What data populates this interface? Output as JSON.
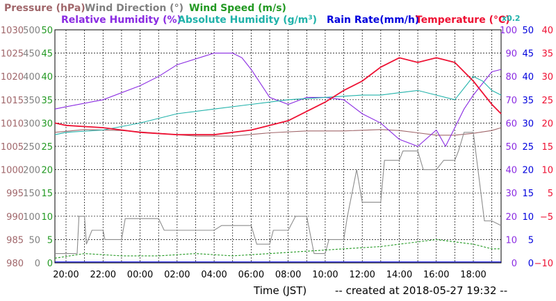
{
  "chart_data": {
    "type": "line",
    "xlabel": "Time (JST)",
    "footer": "-- created at 2018-05-27 19:32 --",
    "x_ticks": [
      "20:00",
      "22:00",
      "00:00",
      "02:00",
      "04:00",
      "06:00",
      "08:00",
      "10:00",
      "12:00",
      "14:00",
      "16:00",
      "18:00"
    ],
    "x_range_hours": [
      -0.6,
      23.5
    ],
    "grid": true,
    "axes": {
      "pressure": {
        "ticks": [
          "1030",
          "1025",
          "1020",
          "1015",
          "1010",
          "1005",
          "1000",
          "995",
          "990",
          "985",
          "980"
        ],
        "ylim": [
          980,
          1030
        ],
        "color": "#a0666a"
      },
      "wind_direction": {
        "ticks": [
          "500",
          "450",
          "400",
          "350",
          "300",
          "250",
          "200",
          "150",
          "100",
          "50",
          "0"
        ],
        "ylim": [
          0,
          500
        ],
        "color": "#808080"
      },
      "wind_speed": {
        "ticks": [
          "50",
          "45",
          "40",
          "35",
          "30",
          "25",
          "20",
          "15",
          "10",
          "5",
          "0"
        ],
        "ylim": [
          0,
          50
        ],
        "color": "#229922"
      },
      "humidity": {
        "ticks": [
          "100",
          "90",
          "80",
          "70",
          "60",
          "50",
          "40",
          "30",
          "20",
          "10",
          "0"
        ],
        "ylim": [
          0,
          100
        ],
        "color": "#8a2be2"
      },
      "rain_rate": {
        "ticks": [
          "50",
          "45",
          "40",
          "35",
          "30",
          "25",
          "20",
          "15",
          "10",
          "5",
          "0"
        ],
        "ylim": [
          0,
          50
        ],
        "color": "#0000dd"
      },
      "temperature": {
        "ticks": [
          "40",
          "35",
          "30",
          "25",
          "20",
          "15",
          "10",
          "5",
          "−5",
          "−10"
        ],
        "ylim": [
          -10,
          40
        ],
        "color": "#ee1133"
      }
    },
    "legend": {
      "pressure": "Pressure (hPa)",
      "wind_direction": "Wind Direction (°)",
      "wind_speed": "Wind Speed (m/s)",
      "relative_humidity": "Relative Humidity (%)",
      "absolute_humidity_prefix": "Absolute Humidity (g/m",
      "absolute_humidity_exp": "3",
      "absolute_humidity_suffix": ")",
      "rain_rate": "Rain Rate(mm/h)",
      "temperature": "Temperature (°C)",
      "scale_note": "x0.2"
    },
    "series": [
      {
        "name": "Pressure (hPa)",
        "axis": "pressure",
        "color": "#a0666a",
        "x": [
          -0.6,
          1,
          3,
          5,
          7,
          9,
          11,
          13,
          15,
          17,
          18,
          19,
          20,
          21,
          22,
          23,
          23.5
        ],
        "values": [
          1008,
          1008.6,
          1008.4,
          1007.8,
          1007.2,
          1007.2,
          1007.9,
          1008.3,
          1008.3,
          1008.6,
          1008.4,
          1007.9,
          1007.4,
          1007.4,
          1007.8,
          1008.4,
          1009
        ]
      },
      {
        "name": "Wind Direction (°)",
        "axis": "wind_direction",
        "color": "#8c8c8c",
        "x": [
          -0.6,
          0.6,
          0.7,
          1,
          1.1,
          1.4,
          2,
          2.1,
          3,
          3.2,
          5,
          5.3,
          7,
          7.2,
          8,
          8.4,
          10,
          10.3,
          11,
          11.2,
          12,
          12.4,
          13,
          13.4,
          14,
          14.2,
          15,
          15.2,
          15.7,
          16,
          17,
          17.2,
          18,
          18.2,
          19,
          19.3,
          20,
          20.4,
          21,
          21.2,
          21.5,
          22,
          22.6,
          23,
          23.5
        ],
        "values": [
          20,
          20,
          100,
          100,
          40,
          70,
          70,
          50,
          50,
          95,
          95,
          70,
          70,
          70,
          70,
          80,
          80,
          40,
          40,
          70,
          70,
          100,
          100,
          20,
          20,
          50,
          50,
          100,
          200,
          130,
          130,
          220,
          220,
          240,
          240,
          200,
          200,
          220,
          220,
          240,
          280,
          280,
          90,
          90,
          80
        ]
      },
      {
        "name": "Wind Speed (m/s)",
        "axis": "wind_speed",
        "color": "#229922",
        "x": [
          -0.6,
          1,
          3,
          5,
          7,
          9,
          11,
          13,
          15,
          17,
          18,
          19,
          20,
          21,
          22,
          23,
          23.5
        ],
        "values": [
          1,
          2,
          1.5,
          1.5,
          2,
          1.5,
          2,
          2.5,
          3,
          3.5,
          4,
          4.5,
          5,
          4.5,
          4,
          3,
          3
        ]
      },
      {
        "name": "Relative Humidity (%)",
        "axis": "humidity",
        "color": "#8a2be2",
        "x": [
          -0.6,
          0,
          2,
          4,
          5,
          6,
          8,
          9,
          9.5,
          10,
          11,
          12,
          13,
          14,
          15,
          16,
          17,
          18,
          19,
          20,
          20.5,
          21,
          21.5,
          22,
          23,
          23.5
        ],
        "values": [
          66,
          67,
          70,
          76,
          80,
          85,
          90,
          90,
          88,
          83,
          71,
          68,
          71,
          71,
          70,
          64,
          60,
          53,
          50,
          57,
          50,
          58,
          66,
          72,
          82,
          83
        ]
      },
      {
        "name": "Absolute Humidity (g/m3)",
        "axis": "humidity",
        "color": "#20b2aa",
        "x": [
          -0.6,
          0,
          2,
          4,
          6,
          8,
          10,
          12,
          14,
          16,
          17,
          18,
          19,
          20,
          21,
          22,
          22.5,
          23,
          23.5
        ],
        "values": [
          55,
          56,
          57,
          60,
          64,
          66,
          68,
          70,
          71,
          72,
          72,
          73,
          74,
          72,
          70,
          80,
          78,
          74,
          72
        ]
      },
      {
        "name": "Rain Rate(mm/h)",
        "axis": "rain_rate",
        "color": "#0000dd",
        "x": [
          -0.6,
          23.5
        ],
        "values": [
          0.2,
          0.2
        ]
      },
      {
        "name": "Temperature (°C)",
        "axis": "temperature",
        "color": "#ee1133",
        "x": [
          -0.6,
          0,
          2,
          4,
          6,
          8,
          10,
          12,
          14,
          15,
          16,
          17,
          18,
          19,
          20,
          21,
          22,
          23,
          23.5
        ],
        "values": [
          20,
          19.5,
          19,
          18,
          17.5,
          17.5,
          18.5,
          20.5,
          24.5,
          27,
          29,
          32,
          34,
          33,
          34,
          33,
          29,
          24,
          22
        ]
      }
    ]
  }
}
